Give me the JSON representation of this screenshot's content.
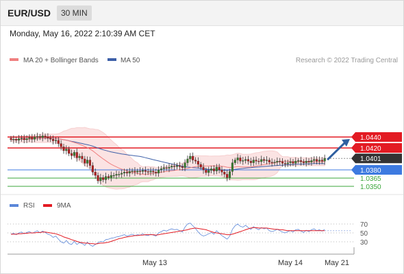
{
  "header": {
    "pair": "EUR/USD",
    "timeframe": "30 MIN"
  },
  "timestamp": "Monday, May 16, 2022 2:10:39 AM CET",
  "colors": {
    "ma20": "#f08080",
    "ma50": "#3d5fa8",
    "band_fill": "#fbe0e0",
    "resistance": "#e31b23",
    "support_blue": "#3d7ae0",
    "support_green": "#3aa53a",
    "current": "#333333",
    "arrow": "#2f5fa0",
    "rsi": "#5b87d9",
    "ma9": "#e31b23",
    "bull": "#3a7d2e",
    "bear": "#b01e1e"
  },
  "legend": {
    "ma20_label": "MA 20 + Bollinger Bands",
    "ma50_label": "MA 50",
    "credit": "Research © 2022 Trading Central"
  },
  "rsi_legend": {
    "rsi_label": "RSI",
    "ma9_label": "9MA"
  },
  "chart_data": {
    "type": "candlestick",
    "instrument": "EUR/USD",
    "interval": "30 MIN",
    "ylim": [
      1.0345,
      1.046
    ],
    "x_axis": {
      "ticks": [
        "May 13",
        "May 14",
        "May 21"
      ]
    },
    "levels": [
      {
        "label": "1.0440",
        "value": 1.044,
        "kind": "resistance"
      },
      {
        "label": "1.0420",
        "value": 1.042,
        "kind": "resistance"
      },
      {
        "label": "1.0401",
        "value": 1.0401,
        "kind": "current"
      },
      {
        "label": "1.0380",
        "value": 1.038,
        "kind": "support"
      },
      {
        "label": "1.0365",
        "value": 1.0365,
        "kind": "support"
      },
      {
        "label": "1.0350",
        "value": 1.035,
        "kind": "support"
      }
    ],
    "closes": [
      1.0435,
      1.0436,
      1.0434,
      1.0437,
      1.0438,
      1.0435,
      1.0437,
      1.0439,
      1.0436,
      1.044,
      1.0441,
      1.0439,
      1.0442,
      1.044,
      1.0438,
      1.0436,
      1.0433,
      1.0434,
      1.0428,
      1.0422,
      1.0415,
      1.0418,
      1.041,
      1.0406,
      1.0412,
      1.0402,
      1.0405,
      1.04,
      1.0392,
      1.0398,
      1.0388,
      1.0376,
      1.037,
      1.036,
      1.0366,
      1.0362,
      1.0368,
      1.0366,
      1.037,
      1.037,
      1.0372,
      1.0372,
      1.0374,
      1.0376,
      1.0374,
      1.0377,
      1.0378,
      1.0376,
      1.0378,
      1.0377,
      1.0379,
      1.0377,
      1.0376,
      1.0378,
      1.0376,
      1.0374,
      1.038,
      1.0382,
      1.0384,
      1.0383,
      1.0385,
      1.0387,
      1.0386,
      1.0388,
      1.0386,
      1.0384,
      1.0393,
      1.04,
      1.0405,
      1.0398,
      1.0396,
      1.039,
      1.0385,
      1.038,
      1.0375,
      1.0379,
      1.0382,
      1.0378,
      1.0385,
      1.038,
      1.0376,
      1.0372,
      1.0366,
      1.0377,
      1.0393,
      1.0398,
      1.0402,
      1.0396,
      1.0397,
      1.0399,
      1.0396,
      1.0393,
      1.0398,
      1.0396,
      1.0395,
      1.0399,
      1.0397,
      1.0398,
      1.0394,
      1.0393,
      1.0394,
      1.0396,
      1.0395,
      1.0392,
      1.0391,
      1.0393,
      1.0395,
      1.0392,
      1.0396,
      1.0397,
      1.0395,
      1.0393,
      1.0396,
      1.0394,
      1.0397,
      1.0399,
      1.0396,
      1.0398,
      1.0396,
      1.0401
    ],
    "forecast_arrow": {
      "from": 1.0401,
      "to": 1.044
    },
    "rsi": {
      "ylim": [
        10,
        90
      ],
      "ticks": [
        70,
        50,
        30
      ],
      "rsi_values": [
        47,
        49,
        46,
        50,
        52,
        48,
        51,
        53,
        49,
        52,
        55,
        50,
        54,
        51,
        47,
        45,
        40,
        43,
        36,
        30,
        27,
        33,
        26,
        24,
        31,
        24,
        28,
        26,
        22,
        29,
        23,
        20,
        24,
        28,
        31,
        30,
        35,
        36,
        38,
        39,
        41,
        42,
        44,
        46,
        43,
        45,
        47,
        44,
        46,
        45,
        48,
        45,
        44,
        47,
        45,
        43,
        50,
        53,
        56,
        54,
        57,
        59,
        57,
        58,
        55,
        52,
        63,
        70,
        72,
        66,
        60,
        52,
        46,
        43,
        45,
        48,
        51,
        47,
        55,
        49,
        44,
        40,
        36,
        43,
        58,
        66,
        70,
        65,
        63,
        67,
        62,
        58,
        64,
        60,
        57,
        62,
        59,
        61,
        55,
        53,
        55,
        58,
        55,
        52,
        50,
        53,
        55,
        52,
        57,
        58,
        54,
        51,
        56,
        53,
        57,
        59,
        55,
        57,
        54,
        58
      ],
      "ma9_values": [
        47,
        47,
        47,
        48,
        48,
        49,
        49,
        50,
        50,
        50,
        51,
        51,
        52,
        52,
        51,
        50,
        49,
        48,
        46,
        44,
        41,
        39,
        37,
        35,
        33,
        31,
        29,
        28,
        27,
        27,
        26,
        26,
        25,
        26,
        27,
        27,
        28,
        29,
        31,
        33,
        35,
        37,
        38,
        40,
        41,
        42,
        43,
        44,
        44,
        45,
        45,
        46,
        46,
        46,
        46,
        45,
        46,
        47,
        48,
        49,
        50,
        51,
        52,
        53,
        54,
        55,
        56,
        57,
        59,
        60,
        61,
        60,
        59,
        58,
        57,
        55,
        53,
        51,
        50,
        49,
        48,
        47,
        46,
        46,
        47,
        49,
        51,
        53,
        55,
        57,
        59,
        61,
        62,
        62,
        61,
        61,
        61,
        61,
        60,
        59,
        58,
        58,
        57,
        57,
        56,
        55,
        55,
        55,
        55,
        55,
        55,
        55,
        55,
        55,
        55,
        55,
        55,
        55,
        55,
        55
      ]
    }
  }
}
